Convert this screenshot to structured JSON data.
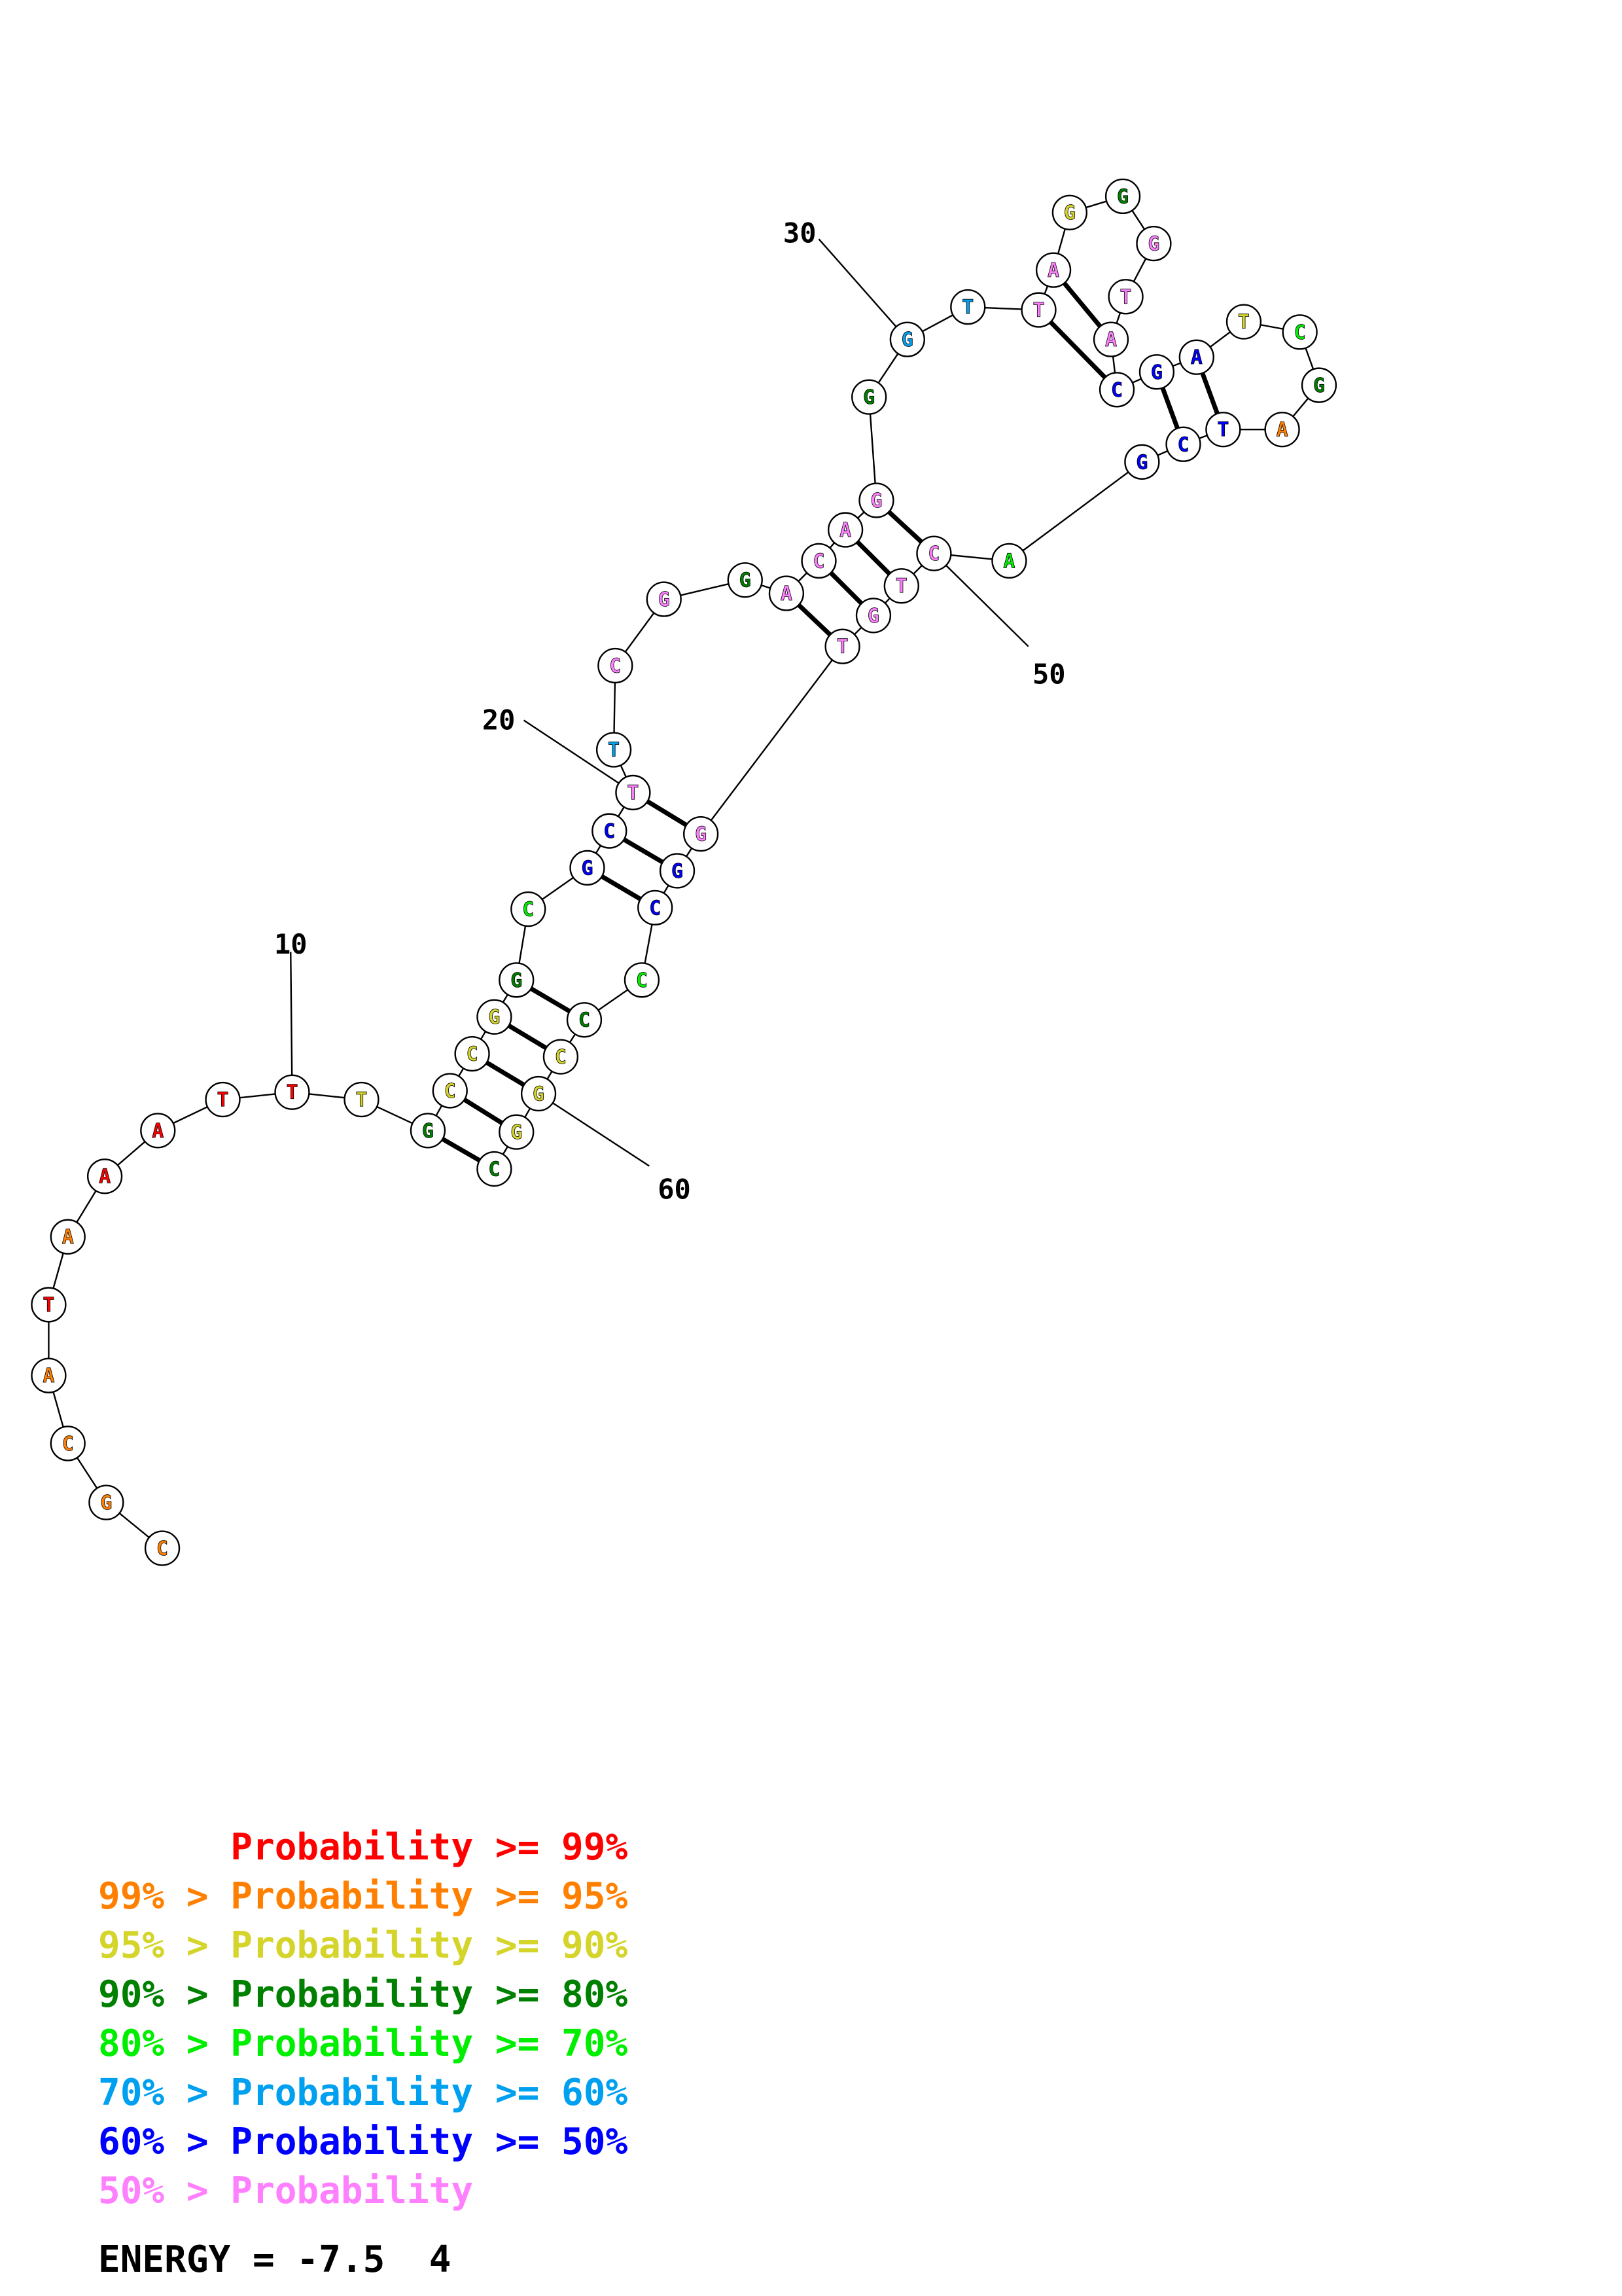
{
  "colors": {
    "p99": "#ff0000",
    "p95": "#ff8000",
    "p90": "#d4d42a",
    "p80": "#008000",
    "p70": "#00ee00",
    "p60": "#00a0f0",
    "p50": "#0000ff",
    "plow": "#ff80ff"
  },
  "sequence": [
    {
      "n": 1,
      "base": "C",
      "prob": "p95"
    },
    {
      "n": 2,
      "base": "G",
      "prob": "p95"
    },
    {
      "n": 3,
      "base": "C",
      "prob": "p95"
    },
    {
      "n": 4,
      "base": "A",
      "prob": "p95"
    },
    {
      "n": 5,
      "base": "T",
      "prob": "p99"
    },
    {
      "n": 6,
      "base": "A",
      "prob": "p95"
    },
    {
      "n": 7,
      "base": "A",
      "prob": "p99"
    },
    {
      "n": 8,
      "base": "A",
      "prob": "p99"
    },
    {
      "n": 9,
      "base": "T",
      "prob": "p99"
    },
    {
      "n": 10,
      "base": "T",
      "prob": "p99"
    },
    {
      "n": 11,
      "base": "T",
      "prob": "p90"
    },
    {
      "n": 12,
      "base": "G",
      "prob": "p80"
    },
    {
      "n": 13,
      "base": "C",
      "prob": "p90"
    },
    {
      "n": 14,
      "base": "C",
      "prob": "p90"
    },
    {
      "n": 15,
      "base": "G",
      "prob": "p90"
    },
    {
      "n": 16,
      "base": "G",
      "prob": "p80"
    },
    {
      "n": 17,
      "base": "C",
      "prob": "p70"
    },
    {
      "n": 18,
      "base": "G",
      "prob": "p50"
    },
    {
      "n": 19,
      "base": "C",
      "prob": "p50"
    },
    {
      "n": 20,
      "base": "T",
      "prob": "plow"
    },
    {
      "n": 21,
      "base": "T",
      "prob": "p60"
    },
    {
      "n": 22,
      "base": "C",
      "prob": "plow"
    },
    {
      "n": 23,
      "base": "G",
      "prob": "plow"
    },
    {
      "n": 24,
      "base": "G",
      "prob": "p80"
    },
    {
      "n": 25,
      "base": "A",
      "prob": "plow"
    },
    {
      "n": 26,
      "base": "C",
      "prob": "plow"
    },
    {
      "n": 27,
      "base": "A",
      "prob": "plow"
    },
    {
      "n": 28,
      "base": "G",
      "prob": "plow"
    },
    {
      "n": 29,
      "base": "G",
      "prob": "p80"
    },
    {
      "n": 30,
      "base": "G",
      "prob": "p60"
    },
    {
      "n": 31,
      "base": "T",
      "prob": "p60"
    },
    {
      "n": 32,
      "base": "T",
      "prob": "plow"
    },
    {
      "n": 33,
      "base": "A",
      "prob": "plow"
    },
    {
      "n": 34,
      "base": "G",
      "prob": "p90"
    },
    {
      "n": 35,
      "base": "G",
      "prob": "p80"
    },
    {
      "n": 36,
      "base": "G",
      "prob": "plow"
    },
    {
      "n": 37,
      "base": "T",
      "prob": "plow"
    },
    {
      "n": 38,
      "base": "A",
      "prob": "plow"
    },
    {
      "n": 39,
      "base": "C",
      "prob": "p50"
    },
    {
      "n": 40,
      "base": "G",
      "prob": "p50"
    },
    {
      "n": 41,
      "base": "A",
      "prob": "p50"
    },
    {
      "n": 42,
      "base": "T",
      "prob": "p90"
    },
    {
      "n": 43,
      "base": "C",
      "prob": "p70"
    },
    {
      "n": 44,
      "base": "G",
      "prob": "p80"
    },
    {
      "n": 45,
      "base": "A",
      "prob": "p95"
    },
    {
      "n": 46,
      "base": "T",
      "prob": "p50"
    },
    {
      "n": 47,
      "base": "C",
      "prob": "p50"
    },
    {
      "n": 48,
      "base": "G",
      "prob": "p50"
    },
    {
      "n": 49,
      "base": "A",
      "prob": "p70"
    },
    {
      "n": 50,
      "base": "C",
      "prob": "plow"
    },
    {
      "n": 51,
      "base": "T",
      "prob": "plow"
    },
    {
      "n": 52,
      "base": "G",
      "prob": "plow"
    },
    {
      "n": 53,
      "base": "T",
      "prob": "plow"
    },
    {
      "n": 54,
      "base": "G",
      "prob": "plow"
    },
    {
      "n": 55,
      "base": "G",
      "prob": "p50"
    },
    {
      "n": 56,
      "base": "C",
      "prob": "p50"
    },
    {
      "n": 57,
      "base": "C",
      "prob": "p70"
    },
    {
      "n": 58,
      "base": "C",
      "prob": "p80"
    },
    {
      "n": 59,
      "base": "C",
      "prob": "p90"
    },
    {
      "n": 60,
      "base": "G",
      "prob": "p90"
    },
    {
      "n": 61,
      "base": "G",
      "prob": "p90"
    },
    {
      "n": 62,
      "base": "C",
      "prob": "p80"
    }
  ],
  "pairs": [
    [
      12,
      62
    ],
    [
      13,
      61
    ],
    [
      14,
      60
    ],
    [
      15,
      59
    ],
    [
      16,
      58
    ],
    [
      18,
      56
    ],
    [
      19,
      55
    ],
    [
      20,
      54
    ],
    [
      25,
      53
    ],
    [
      26,
      52
    ],
    [
      27,
      51
    ],
    [
      28,
      50
    ],
    [
      33,
      38
    ],
    [
      32,
      39
    ],
    [
      40,
      47
    ],
    [
      41,
      46
    ]
  ],
  "index_labels": [
    {
      "n": 10,
      "text": "10"
    },
    {
      "n": 20,
      "text": "20"
    },
    {
      "n": 30,
      "text": "30"
    },
    {
      "n": 50,
      "text": "50"
    },
    {
      "n": 60,
      "text": "60"
    }
  ],
  "legend": [
    {
      "text": "      Probability >= 99%",
      "color": "p99"
    },
    {
      "text": "99% > Probability >= 95%",
      "color": "p95"
    },
    {
      "text": "95% > Probability >= 90%",
      "color": "p90"
    },
    {
      "text": "90% > Probability >= 80%",
      "color": "p80"
    },
    {
      "text": "80% > Probability >= 70%",
      "color": "p70"
    },
    {
      "text": "70% > Probability >= 60%",
      "color": "p60"
    },
    {
      "text": "60% > Probability >= 50%",
      "color": "p50"
    },
    {
      "text": "50% > Probability",
      "color": "plow"
    }
  ],
  "energy": "ENERGY = -7.5  4"
}
